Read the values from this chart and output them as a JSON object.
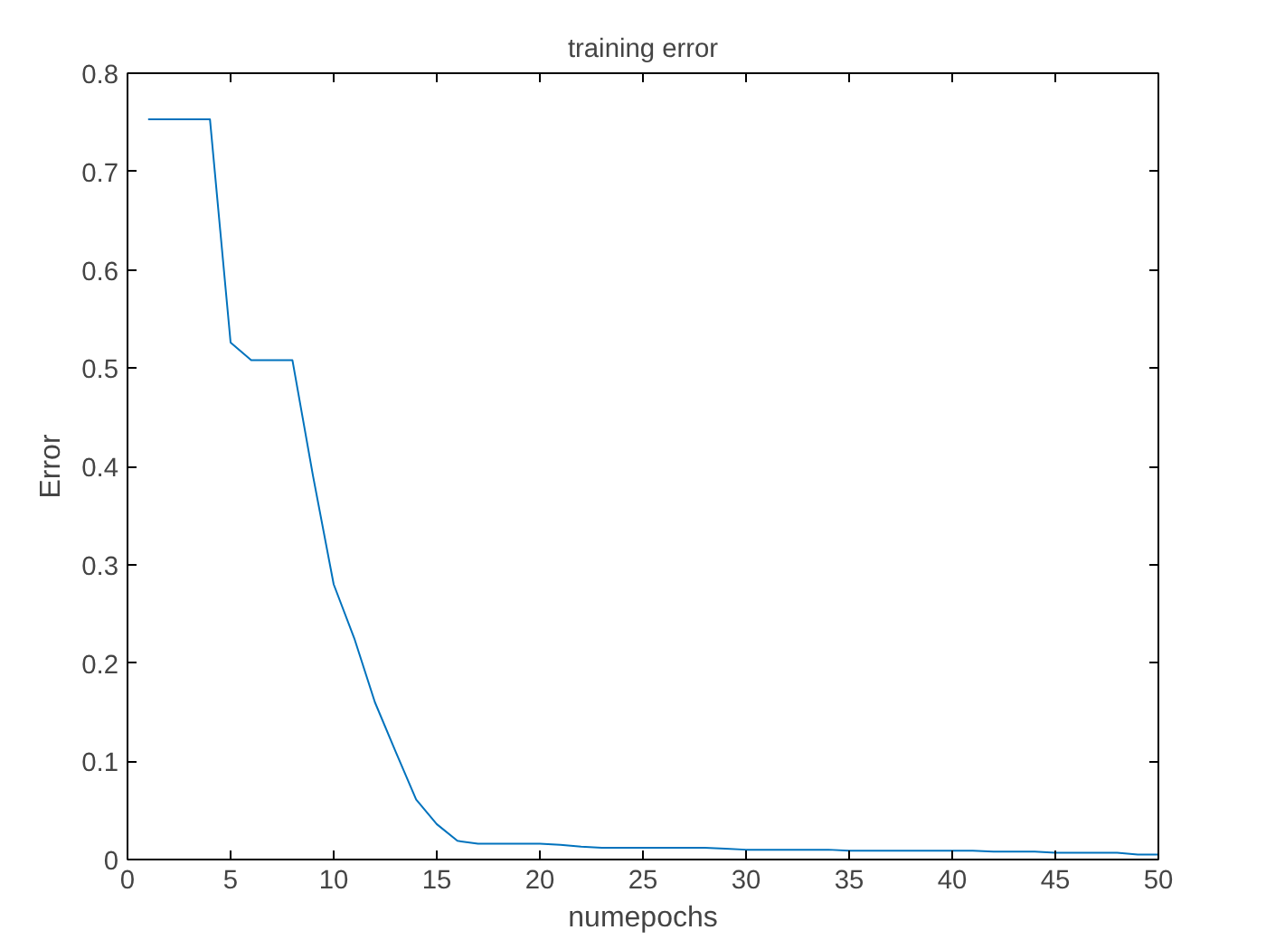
{
  "chart_data": {
    "type": "line",
    "title": "training error",
    "xlabel": "numepochs",
    "ylabel": "Error",
    "x": [
      1,
      2,
      3,
      4,
      5,
      6,
      7,
      8,
      9,
      10,
      11,
      12,
      13,
      14,
      15,
      16,
      17,
      18,
      19,
      20,
      21,
      22,
      23,
      24,
      25,
      26,
      27,
      28,
      29,
      30,
      31,
      32,
      33,
      34,
      35,
      36,
      37,
      38,
      39,
      40,
      41,
      42,
      43,
      44,
      45,
      46,
      47,
      48,
      49,
      50
    ],
    "series": [
      {
        "color": "#0072bd",
        "values": [
          0.753,
          0.753,
          0.753,
          0.753,
          0.526,
          0.508,
          0.508,
          0.508,
          0.39,
          0.28,
          0.225,
          0.16,
          0.11,
          0.061,
          0.036,
          0.019,
          0.016,
          0.016,
          0.016,
          0.016,
          0.015,
          0.013,
          0.012,
          0.012,
          0.012,
          0.012,
          0.012,
          0.012,
          0.011,
          0.01,
          0.01,
          0.01,
          0.01,
          0.01,
          0.009,
          0.009,
          0.009,
          0.009,
          0.009,
          0.009,
          0.009,
          0.008,
          0.008,
          0.008,
          0.007,
          0.007,
          0.007,
          0.007,
          0.005,
          0.005
        ]
      }
    ],
    "xlim": [
      0,
      50
    ],
    "ylim": [
      0,
      0.8
    ],
    "xticks": [
      0,
      5,
      10,
      15,
      20,
      25,
      30,
      35,
      40,
      45,
      50
    ],
    "yticks": [
      0,
      0.1,
      0.2,
      0.3,
      0.4,
      0.5,
      0.6,
      0.7,
      0.8
    ],
    "grid": false,
    "marker": "none",
    "line_style": "solid"
  }
}
